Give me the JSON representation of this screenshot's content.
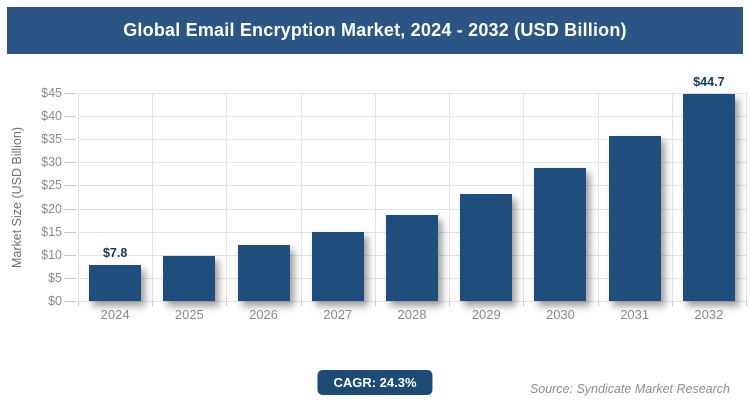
{
  "header": {
    "title": "Global Email Encryption Market, 2024 - 2032 (USD Billion)"
  },
  "chart_data": {
    "type": "bar",
    "title": "Global Email Encryption Market, 2024 - 2032 (USD Billion)",
    "categories": [
      "2024",
      "2025",
      "2026",
      "2027",
      "2028",
      "2029",
      "2030",
      "2031",
      "2032"
    ],
    "values": [
      7.8,
      9.7,
      12.1,
      15.0,
      18.6,
      23.2,
      28.8,
      35.8,
      44.7
    ],
    "value_labels": [
      "$7.8",
      "",
      "",
      "",
      "",
      "",
      "",
      "",
      "$44.7"
    ],
    "xlabel": "",
    "ylabel": "Market Size (USD Billion)",
    "ylim": [
      0,
      45
    ],
    "ytick_step": 5,
    "ytick_prefix": "$",
    "grid": true,
    "legend": false
  },
  "footer": {
    "cagr_label": "CAGR: 24.3%",
    "source": "Source: Syndicate Market Research"
  },
  "colors": {
    "title_bar": "#2A5585",
    "bar": "#1F4E7C",
    "badge": "#1D4B75",
    "value_label": "#17375E",
    "gridline": "#E3E3E3",
    "tick": "#C9C9C9",
    "axis_text": "#8A8A8A",
    "ylabel_text": "#6F6F6F",
    "source_text": "#8C8C8C"
  }
}
